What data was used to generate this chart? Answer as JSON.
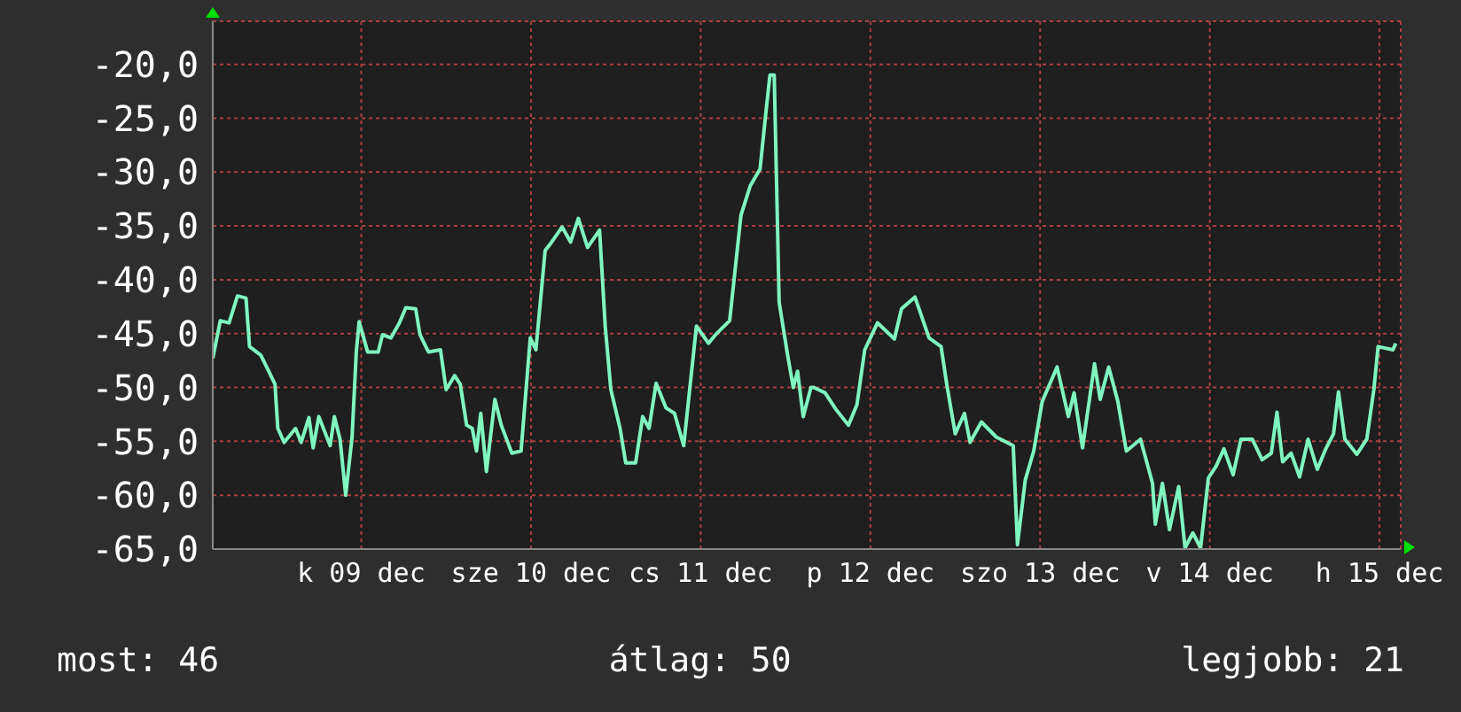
{
  "chart_data": {
    "type": "line",
    "color": "#7ff5c0",
    "x": [
      "--12-08T12:00",
      "--12-08T13:04",
      "--12-08T14:18",
      "--12-08T15:30",
      "--12-08T16:42",
      "--12-08T17:12",
      "--12-08T18:48",
      "--12-08T20:00",
      "--12-08T20:48",
      "--12-08T21:12",
      "--12-08T22:06",
      "--12-08T23:42",
      "--12-09T00:30",
      "--12-09T01:36",
      "--12-09T02:12",
      "--12-09T03:00",
      "--12-09T04:36",
      "--12-09T05:12",
      "--12-09T06:00",
      "--12-09T06:48",
      "--12-09T07:42",
      "--12-09T08:18",
      "--12-09T08:42",
      "--12-09T09:54",
      "--12-09T11:24",
      "--12-09T12:00",
      "--12-09T13:12",
      "--12-09T14:24",
      "--12-09T15:18",
      "--12-09T16:42",
      "--12-09T17:18",
      "--12-09T18:30",
      "--12-09T20:12",
      "--12-09T21:00",
      "--12-09T22:12",
      "--12-09T23:00",
      "--12-09T23:54",
      "--12-10T00:42",
      "--12-10T01:18",
      "--12-10T01:54",
      "--12-10T02:42",
      "--12-10T03:54",
      "--12-10T04:48",
      "--12-10T06:18",
      "--12-10T07:36",
      "--12-10T08:54",
      "--12-10T09:42",
      "--12-10T11:00",
      "--12-10T11:42",
      "--12-10T13:24",
      "--12-10T14:36",
      "--12-10T15:42",
      "--12-10T17:00",
      "--12-10T18:42",
      "--12-10T19:30",
      "--12-10T20:18",
      "--12-10T21:36",
      "--12-10T22:24",
      "--12-10T23:48",
      "--12-11T00:48",
      "--12-11T01:42",
      "--12-11T02:42",
      "--12-11T04:06",
      "--12-11T05:18",
      "--12-11T06:36",
      "--12-11T08:24",
      "--12-11T10:06",
      "--12-11T11:06",
      "--12-11T13:06",
      "--12-11T14:42",
      "--12-11T16:00",
      "--12-11T17:24",
      "--12-11T18:18",
      "--12-11T18:48",
      "--12-11T19:24",
      "--12-11T20:06",
      "--12-11T21:18",
      "--12-11T22:06",
      "--12-11T22:42",
      "--12-11T23:30",
      "--12-12T00:36",
      "--12-12T01:00",
      "--12-12T02:36",
      "--12-12T04:12",
      "--12-12T05:54",
      "--12-12T07:06",
      "--12-12T08:12",
      "--12-12T10:00",
      "--12-12T12:24",
      "--12-12T13:24",
      "--12-12T15:18",
      "--12-12T17:18",
      "--12-12T19:00",
      "--12-12T19:48",
      "--12-12T21:00",
      "--12-12T22:18",
      "--12-12T23:06",
      "--12-13T00:42",
      "--12-13T02:48",
      "--12-13T05:12",
      "--12-13T05:48",
      "--12-13T06:54",
      "--12-13T08:06",
      "--12-13T09:18",
      "--12-13T11:24",
      "--12-13T13:00",
      "--12-13T13:48",
      "--12-13T15:00",
      "--12-13T16:42",
      "--12-13T17:30",
      "--12-13T18:42",
      "--12-13T20:00",
      "--12-13T21:12",
      "--12-13T23:12",
      "--12-14T00:54",
      "--12-14T01:18",
      "--12-14T02:18",
      "--12-14T03:18",
      "--12-14T04:36",
      "--12-14T05:30",
      "--12-14T06:36",
      "--12-14T07:42",
      "--12-14T08:48",
      "--12-14T09:54",
      "--12-14T11:00",
      "--12-14T12:18",
      "--12-14T13:24",
      "--12-14T15:00",
      "--12-14T16:24",
      "--12-14T17:42",
      "--12-14T18:30",
      "--12-14T19:18",
      "--12-14T20:30",
      "--12-14T21:42",
      "--12-14T22:54",
      "--12-15T00:12",
      "--12-15T01:24",
      "--12-15T02:30",
      "--12-15T03:12",
      "--12-15T04:06",
      "--12-15T05:48",
      "--12-15T07:12",
      "--12-15T08:12",
      "--12-15T08:48",
      "--12-15T10:54",
      "--12-15T11:18"
    ],
    "values": [
      -47.3,
      -43.8,
      -44.0,
      -41.5,
      -41.7,
      -46.2,
      -47.0,
      -48.6,
      -49.7,
      -53.8,
      -55.1,
      -53.8,
      -55.1,
      -52.8,
      -55.6,
      -52.7,
      -55.4,
      -52.7,
      -54.8,
      -60.0,
      -54.6,
      -46.7,
      -43.9,
      -46.7,
      -46.7,
      -45.1,
      -45.4,
      -44.0,
      -42.6,
      -42.7,
      -45.1,
      -46.7,
      -46.5,
      -50.2,
      -48.9,
      -49.7,
      -53.5,
      -53.8,
      -55.9,
      -52.4,
      -57.8,
      -51.1,
      -53.5,
      -56.1,
      -55.9,
      -45.4,
      -46.5,
      -37.3,
      -36.7,
      -35.1,
      -36.5,
      -34.3,
      -37.0,
      -35.4,
      -44.3,
      -50.2,
      -53.8,
      -57.0,
      -57.0,
      -52.7,
      -53.8,
      -49.6,
      -51.9,
      -52.4,
      -55.4,
      -44.3,
      -45.9,
      -45.1,
      -43.8,
      -34.0,
      -31.3,
      -29.7,
      -24.0,
      -21.0,
      -21.0,
      -42.1,
      -47.0,
      -50.0,
      -48.5,
      -52.7,
      -50.0,
      -50.0,
      -50.5,
      -52.1,
      -53.5,
      -51.6,
      -46.5,
      -44.0,
      -45.5,
      -42.7,
      -41.6,
      -45.4,
      -46.2,
      -49.7,
      -54.3,
      -52.4,
      -55.1,
      -53.2,
      -54.6,
      -55.4,
      -64.6,
      -58.6,
      -55.9,
      -51.3,
      -48.1,
      -52.7,
      -50.5,
      -55.6,
      -47.8,
      -51.1,
      -48.1,
      -51.3,
      -55.9,
      -54.8,
      -58.9,
      -62.7,
      -58.9,
      -63.2,
      -59.2,
      -64.9,
      -63.5,
      -64.9,
      -58.4,
      -57.3,
      -55.7,
      -58.1,
      -54.8,
      -54.8,
      -56.7,
      -56.1,
      -52.3,
      -56.9,
      -56.1,
      -58.3,
      -54.8,
      -57.6,
      -55.7,
      -54.3,
      -50.4,
      -54.8,
      -56.2,
      -54.8,
      -50.2,
      -46.2,
      -46.5,
      -45.9
    ],
    "xlim": [
      "--12-08T12:00",
      "--12-15T12:00"
    ],
    "xticks": [
      {
        "value": "--12-09T09:00",
        "label": "k 09 dec"
      },
      {
        "value": "--12-10T09:00",
        "label": "sze 10 dec"
      },
      {
        "value": "--12-11T09:00",
        "label": "cs 11 dec"
      },
      {
        "value": "--12-12T09:00",
        "label": "p 12 dec"
      },
      {
        "value": "--12-13T09:00",
        "label": "szo 13 dec"
      },
      {
        "value": "--12-14T09:00",
        "label": "v 14 dec"
      },
      {
        "value": "--12-15T09:00",
        "label": "h 15 dec"
      }
    ],
    "ylim": [
      -65,
      -16
    ],
    "yticks": [
      {
        "value": -65,
        "label": "-65,0"
      },
      {
        "value": -60,
        "label": "-60,0"
      },
      {
        "value": -55,
        "label": "-55,0"
      },
      {
        "value": -50,
        "label": "-50,0"
      },
      {
        "value": -45,
        "label": "-45,0"
      },
      {
        "value": -40,
        "label": "-40,0"
      },
      {
        "value": -35,
        "label": "-35,0"
      },
      {
        "value": -30,
        "label": "-30,0"
      },
      {
        "value": -25,
        "label": "-25,0"
      },
      {
        "value": -20,
        "label": "-20,0"
      }
    ],
    "grid": true,
    "annotations": [
      "most: 46",
      "átlag: 50",
      "legjobb: 21"
    ]
  }
}
